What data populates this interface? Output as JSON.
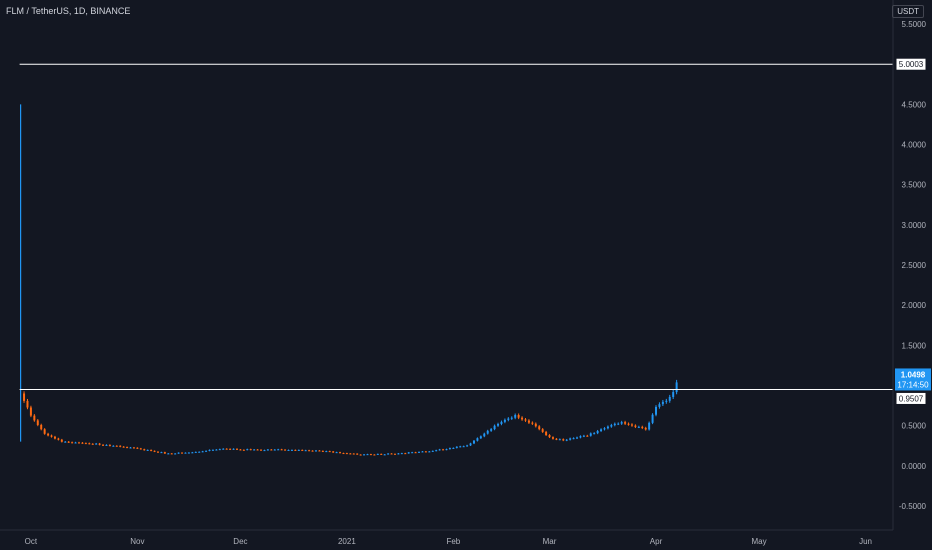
{
  "header": {
    "symbol_title": "FLM / TetherUS, 1D, BINANCE",
    "currency": "USDT"
  },
  "colors": {
    "background": "#131722",
    "up": "#2196f3",
    "down": "#ff6a13",
    "hline": "#ffffff",
    "axis_text": "#b2b5be",
    "current_price_bg": "#2196f3"
  },
  "chart_data": {
    "type": "candlestick",
    "title": "FLM / TetherUS, 1D, BINANCE",
    "ylim": [
      -0.8,
      5.8
    ],
    "y_ticks": [
      "5.5000",
      "4.5000",
      "4.0000",
      "3.5000",
      "3.0000",
      "2.5000",
      "2.0000",
      "1.5000",
      "0.5000",
      "0.0000",
      "-0.5000"
    ],
    "y_tick_values": [
      5.5,
      4.5,
      4.0,
      3.5,
      3.0,
      2.5,
      2.0,
      1.5,
      0.5,
      0.0,
      -0.5
    ],
    "x_ticks": [
      "Oct",
      "Nov",
      "Dec",
      "2021",
      "Feb",
      "Mar",
      "Apr",
      "May",
      "Jun"
    ],
    "x_tick_dates": [
      "2020-10-01",
      "2020-11-01",
      "2020-12-01",
      "2021-01-01",
      "2021-02-01",
      "2021-03-01",
      "2021-04-01",
      "2021-05-01",
      "2021-06-01"
    ],
    "x_range": [
      "2020-09-22",
      "2021-06-09"
    ],
    "grid": false,
    "horizontal_lines": [
      {
        "price": 5.0003,
        "label": "5.0003"
      },
      {
        "price": 0.95,
        "label": "0.9507"
      }
    ],
    "current_price": {
      "label": "1.0498",
      "timer": "17:14:50",
      "value": 1.0498
    },
    "spike": {
      "date": "2020-09-28",
      "high": 4.5,
      "low": 0.3
    },
    "close_path": [
      [
        "2020-09-28",
        0.9
      ],
      [
        "2020-10-01",
        0.62
      ],
      [
        "2020-10-05",
        0.4
      ],
      [
        "2020-10-10",
        0.3
      ],
      [
        "2020-10-20",
        0.27
      ],
      [
        "2020-10-31",
        0.22
      ],
      [
        "2020-11-10",
        0.15
      ],
      [
        "2020-11-20",
        0.18
      ],
      [
        "2020-11-25",
        0.21
      ],
      [
        "2020-12-05",
        0.2
      ],
      [
        "2020-12-15",
        0.2
      ],
      [
        "2020-12-25",
        0.18
      ],
      [
        "2021-01-05",
        0.14
      ],
      [
        "2021-01-15",
        0.15
      ],
      [
        "2021-01-25",
        0.18
      ],
      [
        "2021-02-05",
        0.25
      ],
      [
        "2021-02-10",
        0.4
      ],
      [
        "2021-02-15",
        0.55
      ],
      [
        "2021-02-19",
        0.62
      ],
      [
        "2021-02-25",
        0.5
      ],
      [
        "2021-03-01",
        0.35
      ],
      [
        "2021-03-05",
        0.32
      ],
      [
        "2021-03-12",
        0.38
      ],
      [
        "2021-03-18",
        0.48
      ],
      [
        "2021-03-22",
        0.55
      ],
      [
        "2021-03-25",
        0.5
      ],
      [
        "2021-03-29",
        0.45
      ],
      [
        "2021-04-01",
        0.72
      ],
      [
        "2021-04-04",
        0.82
      ],
      [
        "2021-04-06",
        0.92
      ],
      [
        "2021-04-07",
        1.05
      ]
    ]
  }
}
